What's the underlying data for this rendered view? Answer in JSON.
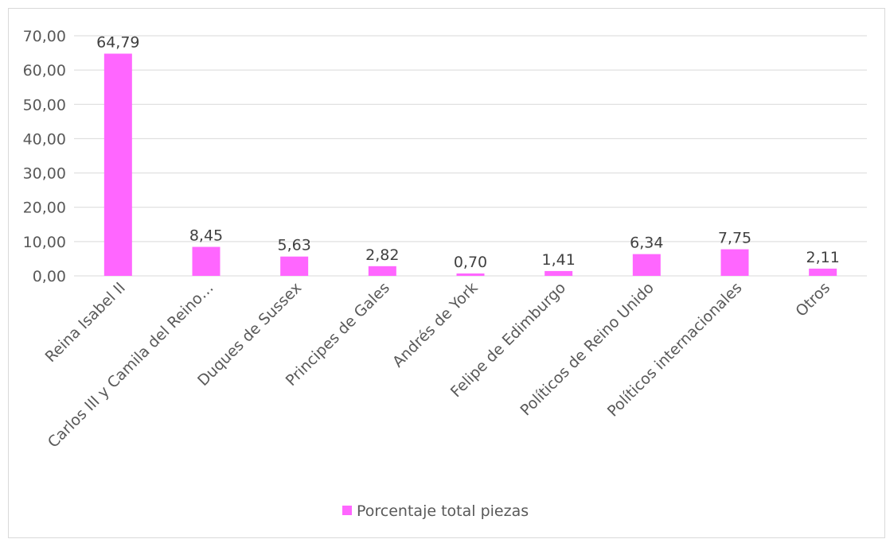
{
  "chart_data": {
    "type": "bar",
    "categories": [
      "Reina Isabel II",
      "Carlos III y Camila del Reino…",
      "Duques de Sussex",
      "Principes de Gales",
      "Andrés de York",
      "Felipe de Edimburgo",
      "Políticos de Reino Unido",
      "Políticos internacionales",
      "Otros"
    ],
    "series": [
      {
        "name": "Porcentaje total piezas",
        "values": [
          64.79,
          8.45,
          5.63,
          2.82,
          0.7,
          1.41,
          6.34,
          7.75,
          2.11
        ],
        "value_labels": [
          "64,79",
          "8,45",
          "5,63",
          "2,82",
          "0,70",
          "1,41",
          "6,34",
          "7,75",
          "2,11"
        ],
        "color": "#ff66ff"
      }
    ],
    "y_ticks": [
      "0,00",
      "10,00",
      "20,00",
      "30,00",
      "40,00",
      "50,00",
      "60,00",
      "70,00"
    ],
    "ylim": [
      0,
      70
    ],
    "grid": true,
    "legend_position": "bottom"
  },
  "colors": {
    "bar": "#ff66ff",
    "gridline": "#d9d9d9",
    "axis_line": "#d9d9d9",
    "text": "#595959"
  }
}
